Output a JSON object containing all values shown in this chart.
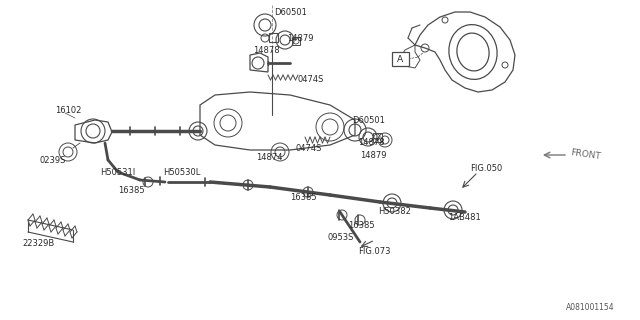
{
  "bg_color": "#ffffff",
  "line_color": "#4a4a4a",
  "watermark": "A081001154",
  "fig_width": 6.4,
  "fig_height": 3.2,
  "dpi": 100,
  "xlim": [
    0,
    640
  ],
  "ylim": [
    0,
    320
  ]
}
